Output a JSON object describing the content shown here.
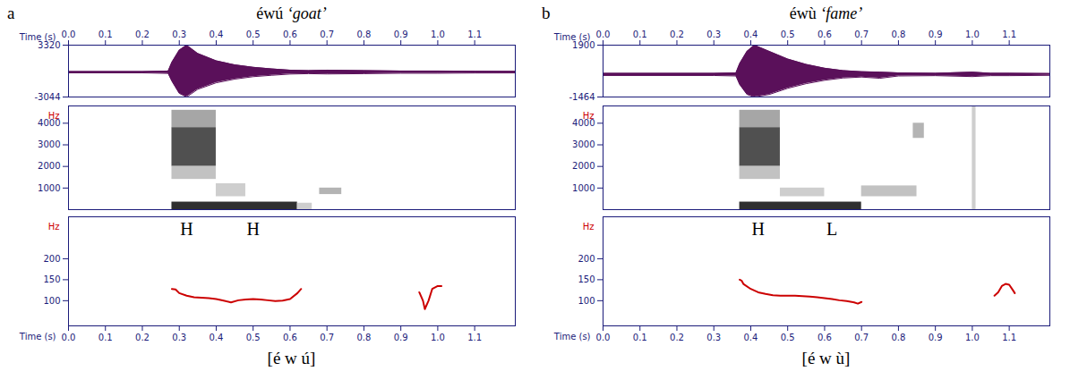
{
  "chart_data": [
    {
      "type": "acoustic",
      "panel": "a",
      "title": "éwú",
      "gloss": "‘goat’",
      "transcription": "[é w ú]",
      "time_label": "Time (s)",
      "xlim": [
        0,
        1.21
      ],
      "xticks": [
        {
          "value": 0,
          "label": "0.0"
        },
        {
          "value": 0.1,
          "label": "0.1"
        },
        {
          "value": 0.2,
          "label": "0.2"
        },
        {
          "value": 0.3,
          "label": "0.3"
        },
        {
          "value": 0.4,
          "label": "0.4"
        },
        {
          "value": 0.5,
          "label": "0.5"
        },
        {
          "value": 0.6,
          "label": "0.6"
        },
        {
          "value": 0.7,
          "label": "0.7"
        },
        {
          "value": 0.8,
          "label": "0.8"
        },
        {
          "value": 0.9,
          "label": "0.9"
        },
        {
          "value": 1,
          "label": "1.0"
        },
        {
          "value": 1.1,
          "label": "1.1"
        }
      ],
      "waveform": {
        "color": "#5a105a",
        "ylim": [
          -3044,
          3320
        ],
        "yticks": [
          -3044,
          3320
        ],
        "time": [
          0,
          0.2,
          0.27,
          0.28,
          0.3,
          0.32,
          0.35,
          0.4,
          0.45,
          0.5,
          0.55,
          0.6,
          0.65,
          0.7,
          0.8,
          0.9,
          1.0,
          1.1,
          1.21
        ],
        "max": [
          80,
          80,
          150,
          1200,
          2700,
          3320,
          2300,
          1400,
          900,
          600,
          400,
          250,
          200,
          250,
          200,
          150,
          150,
          120,
          100
        ],
        "min": [
          -80,
          -80,
          -150,
          -1100,
          -2600,
          -3044,
          -2100,
          -1300,
          -850,
          -550,
          -380,
          -230,
          -180,
          -220,
          -180,
          -130,
          -130,
          -100,
          -90
        ]
      },
      "spectrogram": {
        "y_label": "Hz",
        "ylim": [
          0,
          4800
        ],
        "yticks": [
          1000,
          2000,
          3000,
          4000
        ],
        "cells": [
          [
            0.28,
            0.62,
            0,
            350,
            0.85
          ],
          [
            0.28,
            0.4,
            2000,
            3800,
            0.75
          ],
          [
            0.28,
            0.4,
            3800,
            4600,
            0.45
          ],
          [
            0.28,
            0.4,
            1400,
            2000,
            0.35
          ],
          [
            0.4,
            0.48,
            600,
            1200,
            0.3
          ],
          [
            0.62,
            0.66,
            0,
            300,
            0.3
          ],
          [
            0.68,
            0.74,
            700,
            1000,
            0.4
          ]
        ]
      },
      "pitch": {
        "y_label": "Hz",
        "color": "#cc0000",
        "ylim": [
          40,
          300
        ],
        "yticks": [
          100,
          150,
          200
        ],
        "time": [
          0.28,
          0.29,
          0.3,
          0.32,
          0.34,
          0.36,
          0.38,
          0.4,
          0.42,
          0.44,
          0.46,
          0.48,
          0.5,
          0.52,
          0.54,
          0.56,
          0.58,
          0.6,
          0.62,
          0.63,
          0.8,
          0.95,
          0.96,
          0.965,
          0.975,
          0.985,
          1.0,
          1.01
        ],
        "values": [
          128,
          127,
          118,
          112,
          108,
          107,
          106,
          104,
          100,
          96,
          101,
          103,
          104,
          103,
          101,
          99,
          100,
          104,
          118,
          128,
          null,
          120,
          100,
          80,
          100,
          128,
          135,
          135
        ],
        "annotations": [
          {
            "text": "H",
            "x": 0.32,
            "y": 270
          },
          {
            "text": "H",
            "x": 0.5,
            "y": 270
          }
        ]
      }
    },
    {
      "type": "acoustic",
      "panel": "b",
      "title": "éwù",
      "gloss": "‘fame’",
      "transcription": "[é w ù]",
      "time_label": "Time (s)",
      "xlim": [
        0,
        1.21
      ],
      "xticks": [
        {
          "value": 0,
          "label": "0.0"
        },
        {
          "value": 0.1,
          "label": "0.1"
        },
        {
          "value": 0.2,
          "label": "0.2"
        },
        {
          "value": 0.3,
          "label": "0.3"
        },
        {
          "value": 0.4,
          "label": "0.4"
        },
        {
          "value": 0.5,
          "label": "0.5"
        },
        {
          "value": 0.6,
          "label": "0.6"
        },
        {
          "value": 0.7,
          "label": "0.7"
        },
        {
          "value": 0.8,
          "label": "0.8"
        },
        {
          "value": 0.9,
          "label": "0.9"
        },
        {
          "value": 1,
          "label": "1.0"
        },
        {
          "value": 1.1,
          "label": "1.1"
        }
      ],
      "waveform": {
        "color": "#5a105a",
        "ylim": [
          -1464,
          1900
        ],
        "yticks": [
          -1464,
          1900
        ],
        "time": [
          0,
          0.3,
          0.36,
          0.37,
          0.39,
          0.41,
          0.45,
          0.5,
          0.55,
          0.6,
          0.65,
          0.7,
          0.75,
          0.8,
          0.9,
          1.0,
          1.05,
          1.1,
          1.21
        ],
        "max": [
          70,
          70,
          100,
          700,
          1500,
          1900,
          1500,
          1000,
          650,
          400,
          250,
          180,
          150,
          100,
          80,
          150,
          80,
          80,
          60
        ],
        "min": [
          -70,
          -70,
          -100,
          -650,
          -1300,
          -1464,
          -1300,
          -900,
          -600,
          -380,
          -230,
          -170,
          -250,
          -100,
          -80,
          -140,
          -80,
          -80,
          -60
        ]
      },
      "spectrogram": {
        "y_label": "Hz",
        "ylim": [
          0,
          4800
        ],
        "yticks": [
          1000,
          2000,
          3000,
          4000
        ],
        "cells": [
          [
            0.37,
            0.7,
            0,
            350,
            0.85
          ],
          [
            0.37,
            0.48,
            2000,
            3800,
            0.75
          ],
          [
            0.37,
            0.48,
            3800,
            4600,
            0.45
          ],
          [
            0.37,
            0.48,
            1400,
            2000,
            0.35
          ],
          [
            0.48,
            0.6,
            600,
            1000,
            0.3
          ],
          [
            0.7,
            0.85,
            600,
            1100,
            0.35
          ],
          [
            0.84,
            0.87,
            3300,
            4000,
            0.4
          ],
          [
            1.0,
            1.01,
            0,
            4800,
            0.3
          ]
        ]
      },
      "pitch": {
        "y_label": "Hz",
        "color": "#cc0000",
        "ylim": [
          40,
          300
        ],
        "yticks": [
          100,
          150,
          200
        ],
        "time": [
          0.37,
          0.375,
          0.38,
          0.4,
          0.42,
          0.44,
          0.46,
          0.48,
          0.5,
          0.52,
          0.54,
          0.56,
          0.58,
          0.6,
          0.62,
          0.64,
          0.66,
          0.68,
          0.69,
          0.7,
          0.85,
          1.06,
          1.07,
          1.08,
          1.09,
          1.1,
          1.11,
          1.115
        ],
        "values": [
          150,
          148,
          140,
          128,
          120,
          116,
          113,
          112,
          112,
          112,
          111,
          110,
          108,
          106,
          104,
          101,
          99,
          96,
          93,
          97,
          null,
          112,
          120,
          135,
          140,
          138,
          125,
          118
        ],
        "annotations": [
          {
            "text": "H",
            "x": 0.42,
            "y": 270
          },
          {
            "text": "L",
            "x": 0.62,
            "y": 270
          }
        ]
      }
    }
  ]
}
